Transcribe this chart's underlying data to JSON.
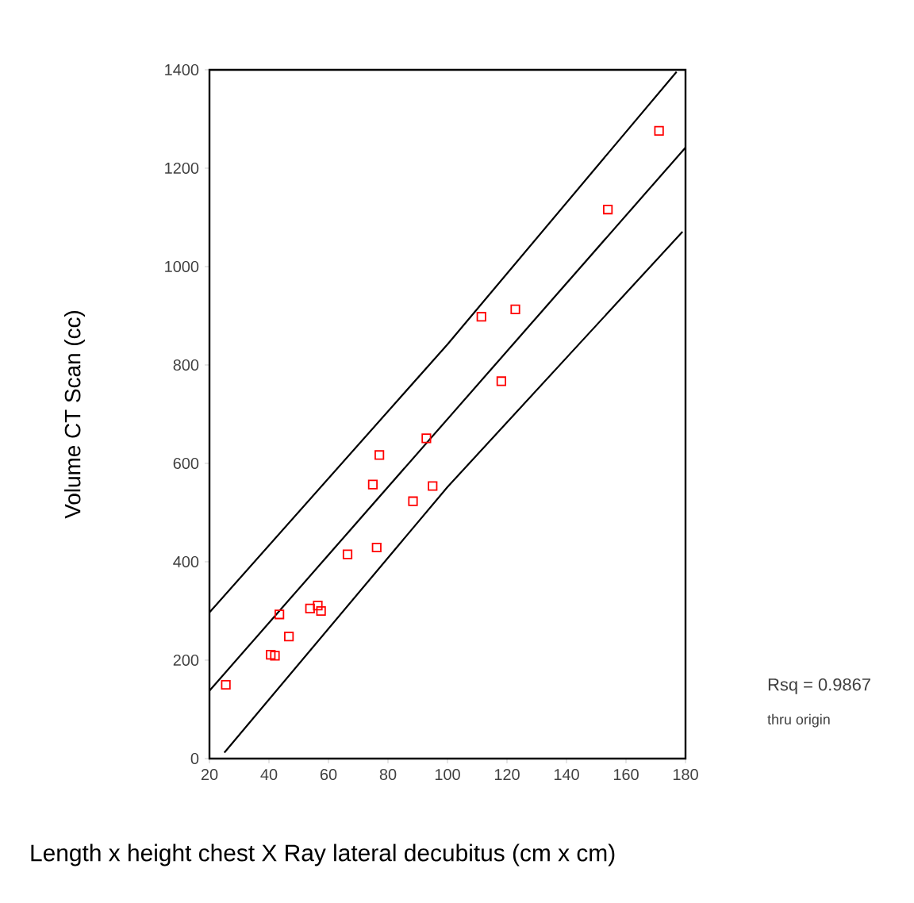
{
  "chart_data": {
    "type": "scatter",
    "xlabel": "Length x height chest X Ray  lateral decubitus (cm x cm)",
    "ylabel": "Volume CT Scan (cc)",
    "xlim": [
      20,
      180
    ],
    "ylim": [
      0,
      1400
    ],
    "xticks": [
      20,
      40,
      60,
      80,
      100,
      120,
      140,
      160,
      180
    ],
    "yticks": [
      0,
      200,
      400,
      600,
      800,
      1000,
      1200,
      1400
    ],
    "annotations": [
      "Rsq = 0.9867",
      "thru origin"
    ],
    "series": [
      {
        "marker": "square",
        "color": "#ff0000",
        "x": [
          25.5,
          40.6,
          42,
          43.5,
          46.7,
          53.8,
          56.4,
          57.5,
          66.4,
          76.2,
          74.9,
          77.1,
          88.4,
          92.9,
          95,
          118.1,
          111.4,
          122.8,
          153.9,
          171.1
        ],
        "values": [
          150,
          211,
          209,
          293,
          248,
          305,
          311,
          300,
          415,
          429,
          557,
          617,
          523,
          651,
          554,
          767,
          898,
          913,
          1116,
          1276
        ]
      },
      {
        "type": "line",
        "marker": "none",
        "color": "#000000",
        "x": [
          20,
          180
        ],
        "values": [
          138,
          1242
        ]
      },
      {
        "type": "line",
        "marker": "none",
        "color": "#000000",
        "x": [
          20,
          100,
          177
        ],
        "values": [
          297,
          842,
          1396
        ]
      },
      {
        "type": "line",
        "marker": "none",
        "color": "#000000",
        "x": [
          25,
          100,
          179
        ],
        "values": [
          12,
          552,
          1071
        ]
      }
    ]
  }
}
